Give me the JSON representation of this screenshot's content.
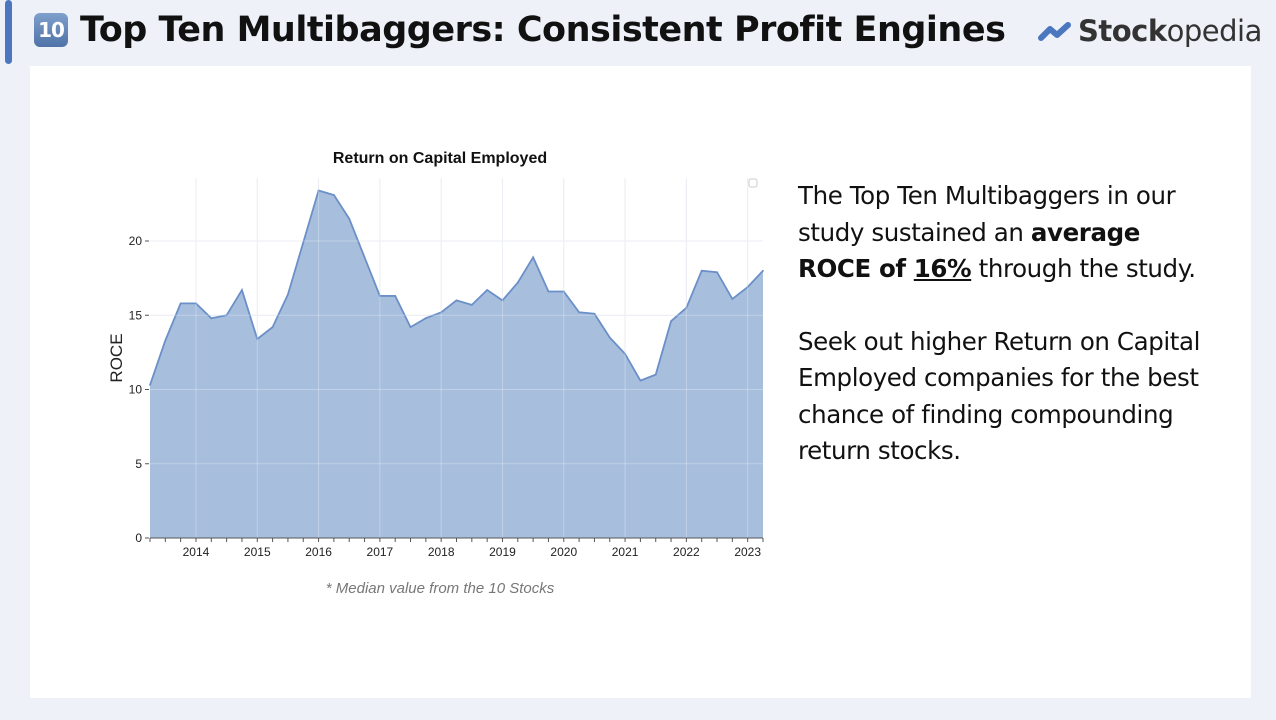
{
  "header": {
    "emoji": "10",
    "title": "Top Ten Multibaggers: Consistent Profit Engines"
  },
  "logo": {
    "bold": "Stock",
    "rest": "opedia",
    "color": "#4a77c0"
  },
  "chart_data": {
    "type": "area",
    "title": "Return on Capital Employed",
    "xlabel": "",
    "ylabel": "ROCE",
    "xlim": [
      2013.25,
      2023.25
    ],
    "ylim": [
      0,
      24.5
    ],
    "xticks": [
      "2014",
      "2015",
      "2016",
      "2017",
      "2018",
      "2019",
      "2020",
      "2021",
      "2022",
      "2023"
    ],
    "yticks": [
      "0",
      "5",
      "10",
      "15",
      "20"
    ],
    "grid": true,
    "color": "#a2badb",
    "line_color": "#6b90c8",
    "x": [
      2013.25,
      2013.5,
      2013.75,
      2014,
      2014.25,
      2014.5,
      2014.75,
      2015,
      2015.25,
      2015.5,
      2015.75,
      2016,
      2016.25,
      2016.5,
      2016.75,
      2017,
      2017.25,
      2017.5,
      2017.75,
      2018,
      2018.25,
      2018.5,
      2018.75,
      2019,
      2019.25,
      2019.5,
      2019.75,
      2020,
      2020.25,
      2020.5,
      2020.75,
      2021,
      2021.25,
      2021.5,
      2021.75,
      2022,
      2022.25,
      2022.5,
      2022.75,
      2023,
      2023.25
    ],
    "values": [
      10.3,
      13.3,
      15.8,
      15.8,
      14.8,
      15.0,
      16.7,
      13.4,
      14.2,
      16.4,
      19.9,
      23.4,
      23.1,
      21.5,
      18.9,
      16.3,
      16.3,
      14.2,
      14.8,
      15.2,
      16.0,
      15.7,
      16.7,
      16.0,
      17.2,
      18.9,
      16.6,
      16.6,
      15.2,
      15.1,
      13.5,
      12.4,
      10.6,
      11.0,
      14.6,
      15.5,
      18.0,
      17.9,
      16.1,
      16.9,
      18.0
    ]
  },
  "note": "* Median value from the 10 Stocks",
  "side": {
    "p1_pre": "The Top Ten Multibaggers in our study sustained an ",
    "p1_bold": "average ROCE of ",
    "p1_underline": "16%",
    "p1_post": " through the study.",
    "p2": "Seek out higher Return on Capital Employed companies for the best chance of finding compounding return stocks."
  }
}
